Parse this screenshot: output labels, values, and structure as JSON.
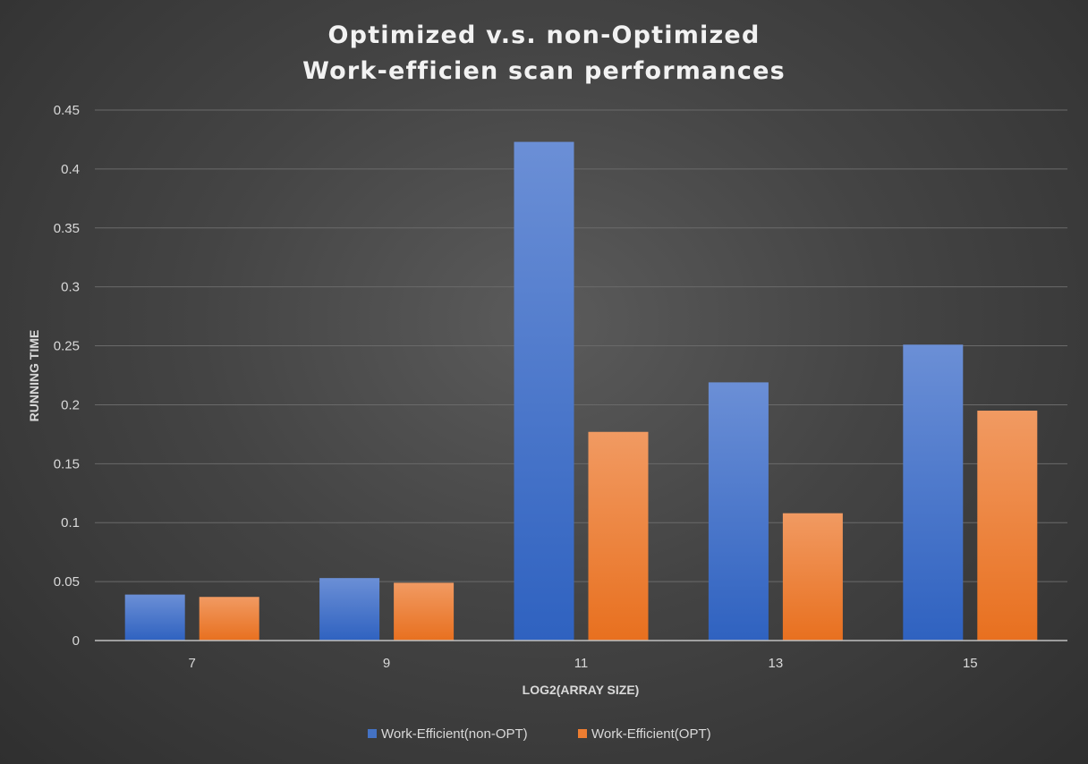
{
  "chart_data": {
    "type": "bar",
    "title": [
      "Optimized v.s. non-Optimized",
      "Work-efficien scan performances"
    ],
    "xlabel": "LOG2(ARRAY SIZE)",
    "ylabel": "RUNNING TIME",
    "categories": [
      "7",
      "9",
      "11",
      "13",
      "15"
    ],
    "ylim": [
      0,
      0.45
    ],
    "yticks": [
      0,
      0.05,
      0.1,
      0.15,
      0.2,
      0.25,
      0.3,
      0.35,
      0.4,
      0.45
    ],
    "ytick_labels": [
      "0",
      "0.05",
      "0.1",
      "0.15",
      "0.2",
      "0.25",
      "0.3",
      "0.35",
      "0.4",
      "0.45"
    ],
    "grid": true,
    "legend_position": "bottom",
    "series": [
      {
        "name": "Work-Efficient(non-OPT)",
        "color": "#4472c4",
        "values": [
          0.039,
          0.053,
          0.423,
          0.219,
          0.251
        ]
      },
      {
        "name": "Work-Efficient(OPT)",
        "color": "#ed7d31",
        "values": [
          0.037,
          0.049,
          0.177,
          0.108,
          0.195
        ]
      }
    ]
  }
}
